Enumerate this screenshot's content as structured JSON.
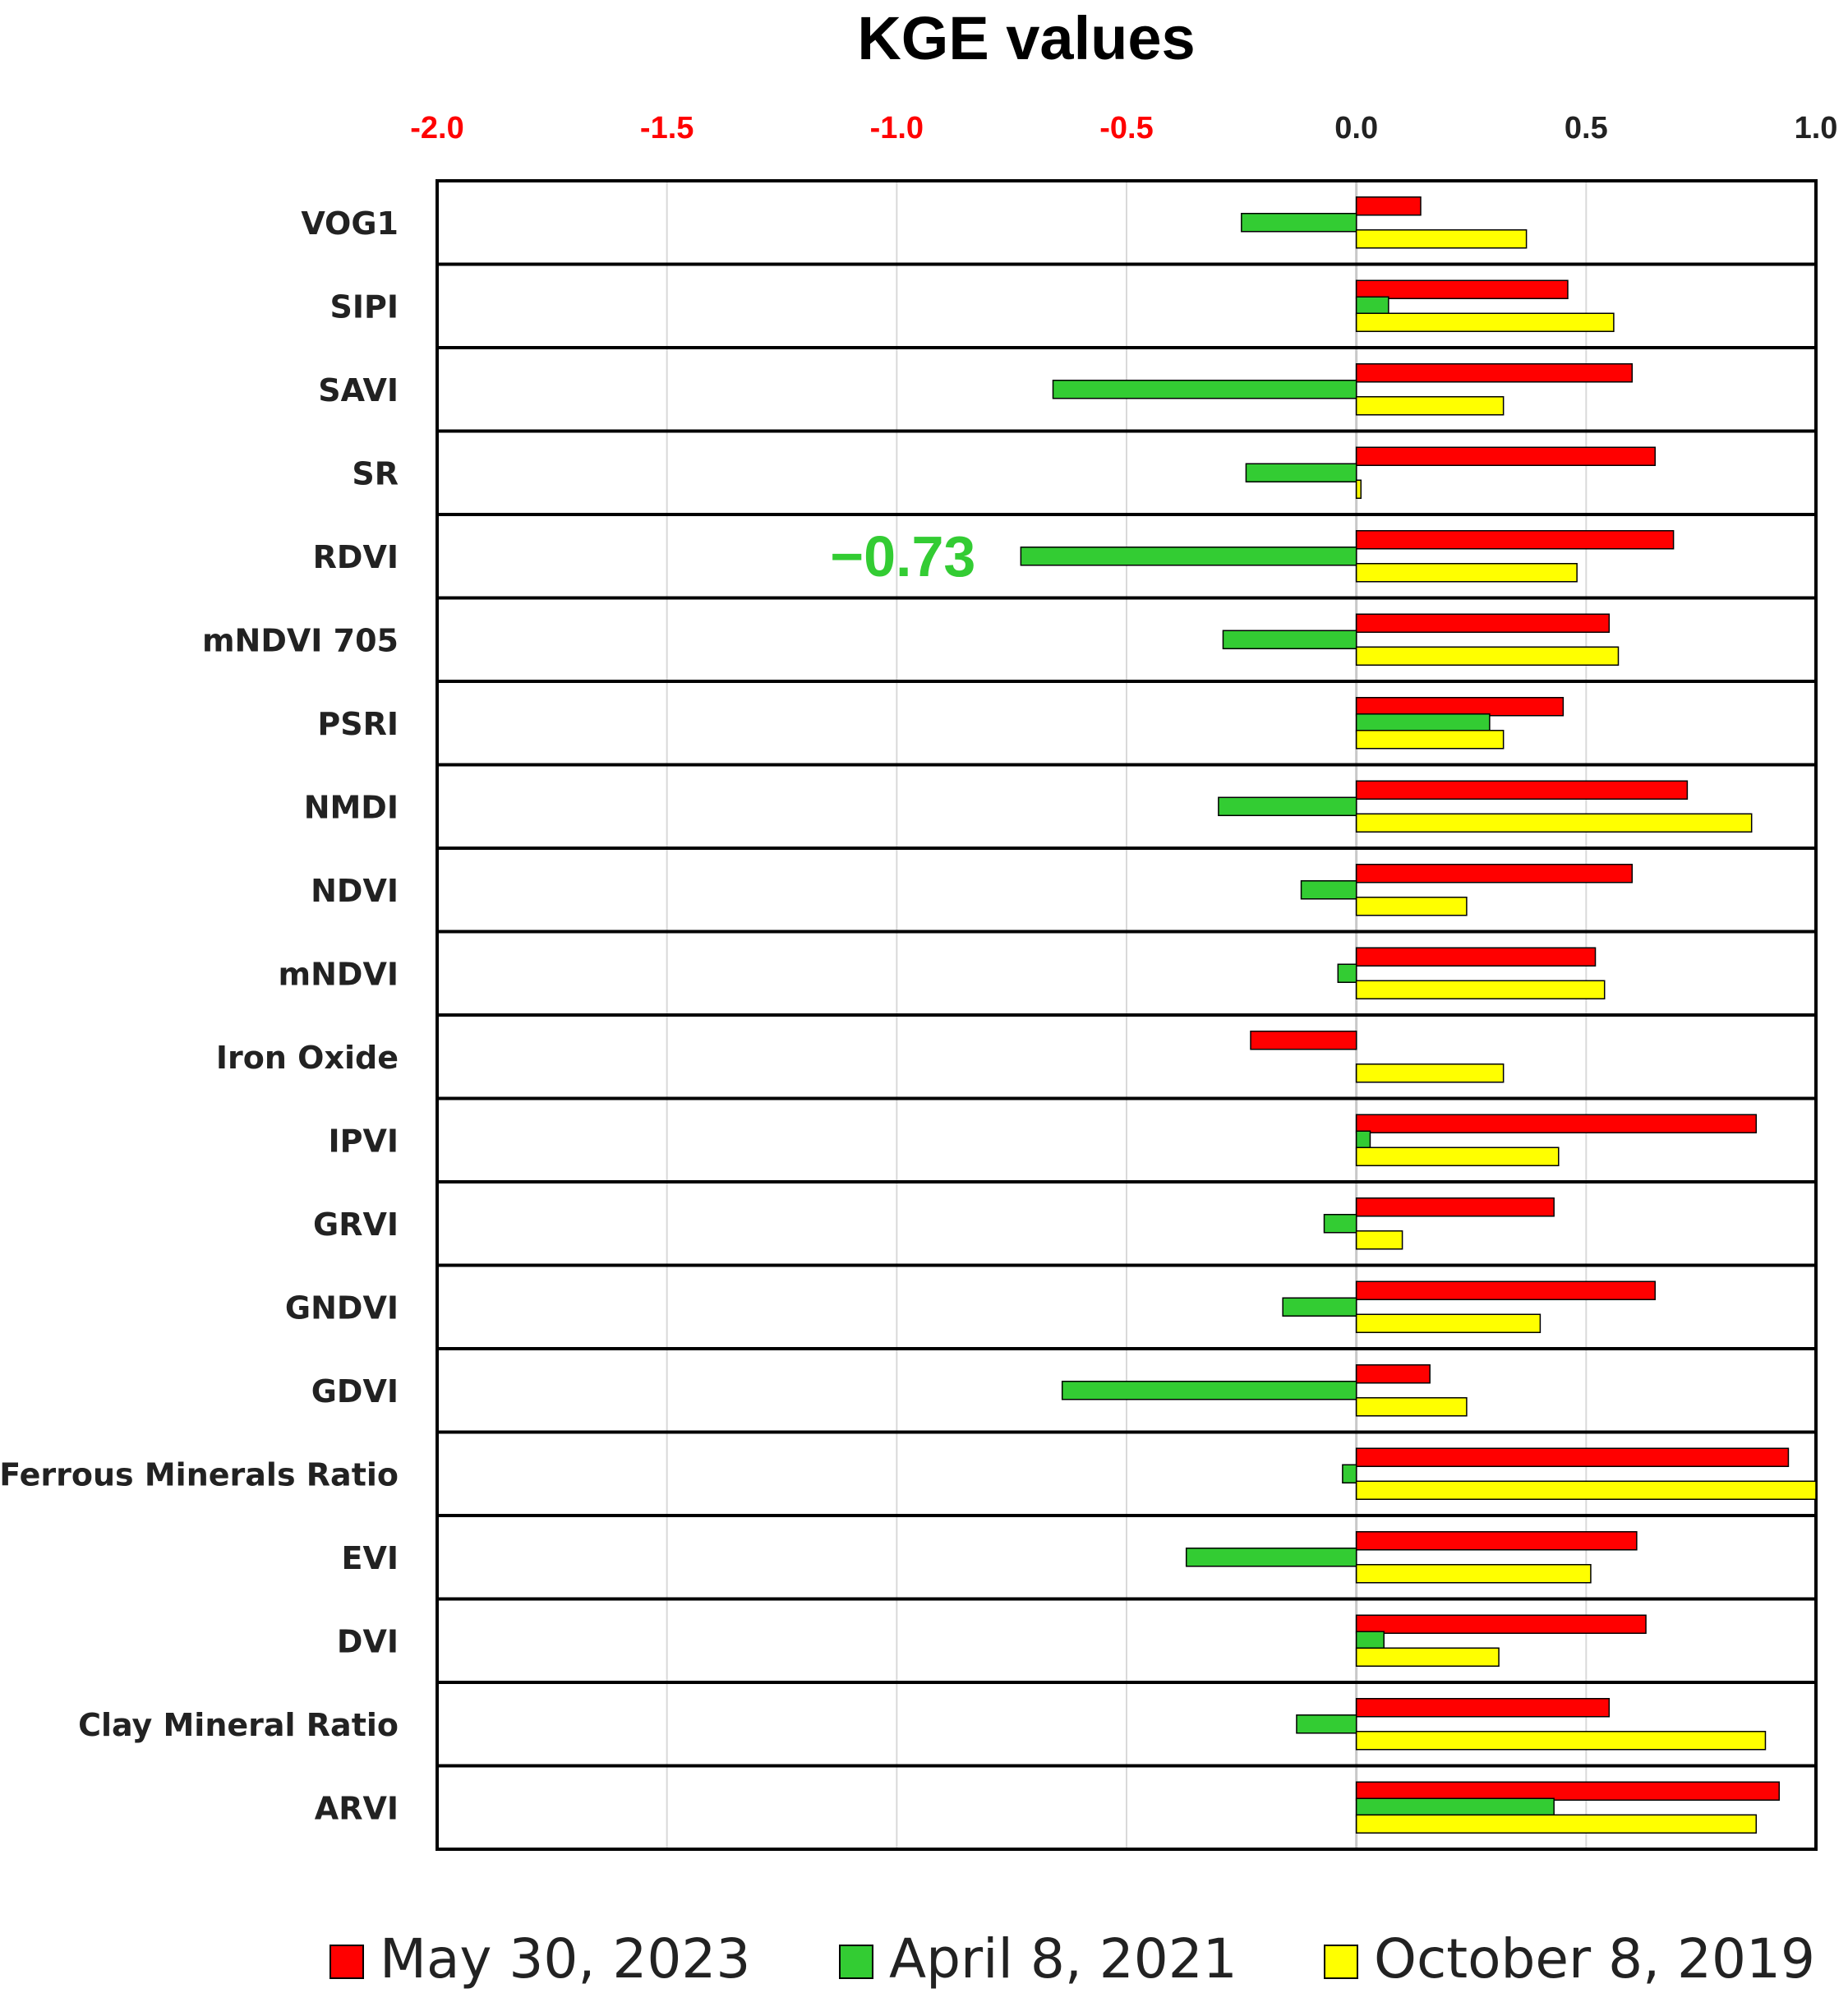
{
  "chart_data": {
    "type": "bar",
    "orientation": "horizontal",
    "title": "KGE values",
    "xlim": [
      -2.0,
      1.0
    ],
    "x_ticks": [
      "-2.0",
      "-1.5",
      "-1.0",
      "-0.5",
      "0.0",
      "0.5",
      "1.0"
    ],
    "x_tick_values": [
      -2.0,
      -1.5,
      -1.0,
      -0.5,
      0.0,
      0.5,
      1.0
    ],
    "axis_position": "top",
    "grid": true,
    "legend_position": "bottom",
    "categories": [
      "VOG1",
      "SIPI",
      "SAVI",
      "SR",
      "RDVI",
      "mNDVI 705",
      "PSRI",
      "NMDI",
      "NDVI",
      "mNDVI",
      "Iron Oxide",
      "IPVI",
      "GRVI",
      "GNDVI",
      "GDVI",
      "Ferrous Minerals Ratio",
      "EVI",
      "DVI",
      "Clay Mineral Ratio",
      "ARVI"
    ],
    "series": [
      {
        "name": "May 30, 2023",
        "color": "#ff0000",
        "values": [
          0.14,
          0.46,
          0.6,
          0.65,
          0.69,
          0.55,
          0.45,
          0.72,
          0.6,
          0.52,
          -0.23,
          0.87,
          0.43,
          0.65,
          0.16,
          0.94,
          0.61,
          0.63,
          0.55,
          0.92
        ]
      },
      {
        "name": "April 8, 2021",
        "color": "#33cc33",
        "values": [
          -0.25,
          0.07,
          -0.66,
          -0.24,
          -0.73,
          -0.29,
          0.29,
          -0.3,
          -0.12,
          -0.04,
          0.0,
          0.03,
          -0.07,
          -0.16,
          -0.64,
          -0.03,
          -0.37,
          0.06,
          -0.13,
          0.43
        ]
      },
      {
        "name": "October 8, 2019",
        "color": "#ffff00",
        "values": [
          0.37,
          0.56,
          0.32,
          0.01,
          0.48,
          0.57,
          0.32,
          0.86,
          0.24,
          0.54,
          0.32,
          0.44,
          0.1,
          0.4,
          0.24,
          1.0,
          0.51,
          0.31,
          0.89,
          0.87
        ]
      }
    ],
    "annotations": [
      {
        "text": "−0.73",
        "category": "RDVI",
        "color": "#33cc33"
      }
    ]
  }
}
